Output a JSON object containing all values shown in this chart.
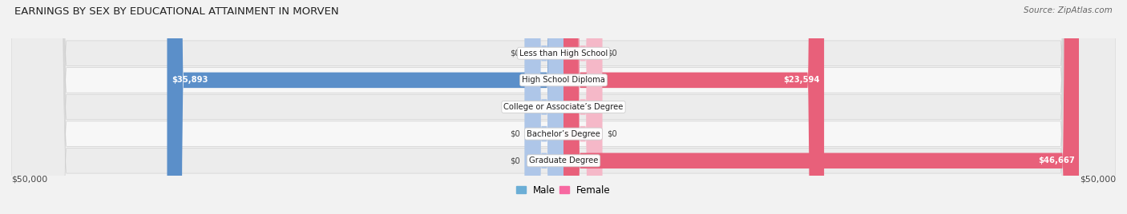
{
  "title": "EARNINGS BY SEX BY EDUCATIONAL ATTAINMENT IN MORVEN",
  "source": "Source: ZipAtlas.com",
  "categories": [
    "Less than High School",
    "High School Diploma",
    "College or Associate’s Degree",
    "Bachelor’s Degree",
    "Graduate Degree"
  ],
  "male_values": [
    0,
    35893,
    0,
    0,
    0
  ],
  "female_values": [
    0,
    23594,
    0,
    0,
    46667
  ],
  "male_color_light": "#aec6e8",
  "male_color_dark": "#5b8fc9",
  "female_color_light": "#f5b8c8",
  "female_color_dark": "#e8607a",
  "male_legend_color": "#6baed6",
  "female_legend_color": "#f768a1",
  "x_max": 50000,
  "stub_val": 3500,
  "bar_height": 0.58,
  "row_bg_odd": "#ececec",
  "row_bg_even": "#f7f7f7",
  "title_fontsize": 9.5,
  "label_fontsize": 7.2,
  "value_fontsize": 7.2,
  "source_fontsize": 7.5,
  "axis_label_left": "$50,000",
  "axis_label_right": "$50,000"
}
